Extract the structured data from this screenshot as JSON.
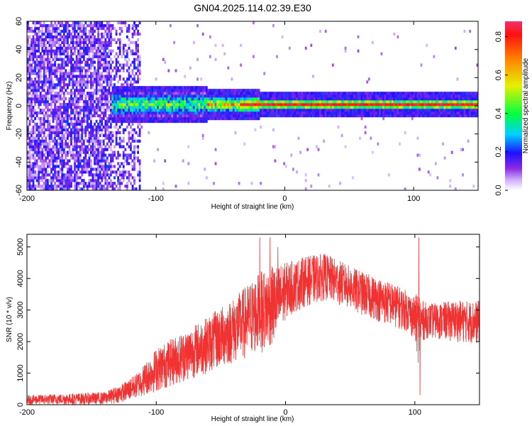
{
  "title": "GN04.2025.114.02.39.E30",
  "chart_data": [
    {
      "type": "heatmap",
      "xlabel": "Height of straight line (km)",
      "ylabel": "Frequency (Hz)",
      "xlim": [
        -200,
        150
      ],
      "ylim": [
        -60,
        60
      ],
      "x_ticks": [
        -200,
        -100,
        0,
        100
      ],
      "y_ticks": [
        -60,
        -40,
        -20,
        0,
        20,
        40,
        60
      ],
      "colorbar": {
        "label": "Normalized spectral amplitude",
        "range": [
          0,
          0.88
        ],
        "ticks": [
          0.0,
          0.2,
          0.4,
          0.6,
          0.8
        ],
        "colormap": "rainbow-purple-to-red"
      },
      "features": {
        "noise_region_x": [
          -200,
          -112
        ],
        "signal_start_x": -135,
        "center_frequency_hz": 0,
        "peak_band_start_x": -35
      }
    },
    {
      "type": "line",
      "xlabel": "Height of straight line (km)",
      "ylabel": "SNR (10 * v/v)",
      "xlim": [
        -200,
        150
      ],
      "ylim": [
        0,
        5400
      ],
      "x_ticks": [
        -200,
        -100,
        0,
        100
      ],
      "y_ticks": [
        0,
        1000,
        2000,
        3000,
        4000,
        5000
      ],
      "color": "#f03232",
      "series": [
        {
          "name": "",
          "envelope": {
            "x": [
              -200,
              -170,
              -140,
              -125,
              -115,
              -100,
              -80,
              -60,
              -40,
              -20,
              -5,
              0,
              15,
              30,
              45,
              60,
              80,
              95,
              100,
              103,
              106,
              110,
              130,
              150
            ],
            "low": [
              0,
              0,
              0,
              80,
              200,
              400,
              700,
              1000,
              1300,
              1600,
              2000,
              2700,
              3100,
              3300,
              3100,
              2800,
              2500,
              2300,
              2000,
              1200,
              2000,
              2100,
              2000,
              1900
            ],
            "high": [
              300,
              350,
              400,
              700,
              1000,
              1800,
              2300,
              2800,
              3400,
              4200,
              4500,
              4500,
              4700,
              4800,
              4500,
              4200,
              3900,
              3600,
              3400,
              3700,
              3300,
              3200,
              3300,
              3300
            ]
          },
          "spikes": [
            [
              -20,
              5300
            ],
            [
              -12,
              5300
            ],
            [
              -6,
              5000
            ],
            [
              103,
              5300
            ],
            [
              104,
              300
            ]
          ]
        }
      ]
    }
  ]
}
